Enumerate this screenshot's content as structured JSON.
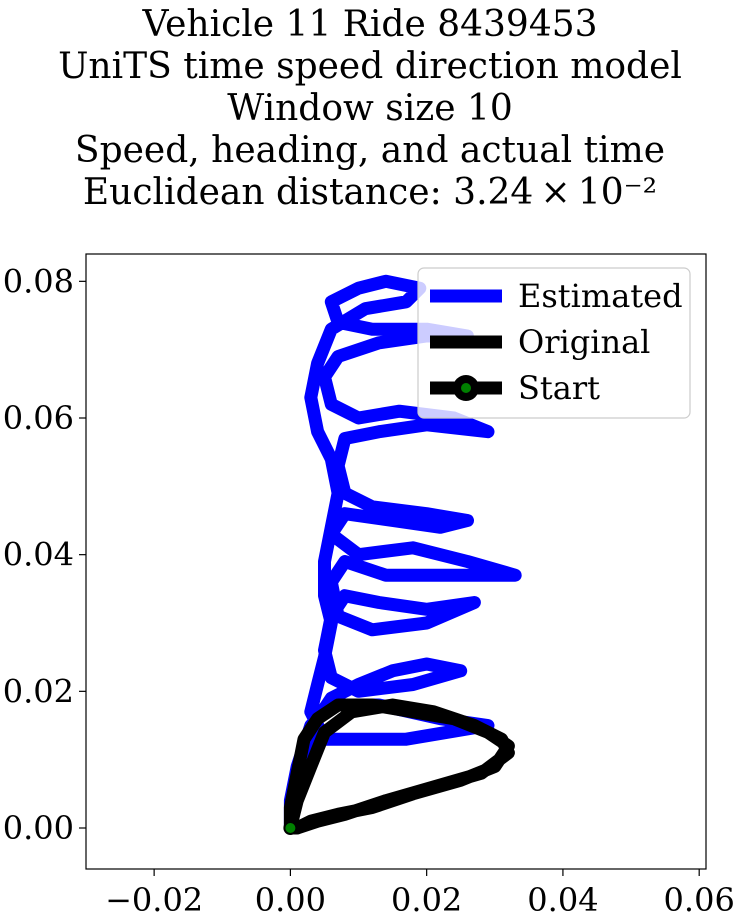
{
  "title_lines": [
    "Vehicle 11 Ride 8439453",
    "UniTS time speed direction model",
    "Window size 10",
    "Speed, heading, and actual time",
    "Euclidean distance: 3.24 × 10⁻²"
  ],
  "colors": {
    "estimated": "#0000ff",
    "original": "#000000",
    "start_marker": "#008000"
  },
  "chart_data": {
    "type": "line",
    "xlim": [
      -0.03,
      0.061
    ],
    "ylim": [
      -0.006,
      0.084
    ],
    "xticks": [
      -0.02,
      0.0,
      0.02,
      0.04,
      0.06
    ],
    "xtick_labels": [
      "−0.02",
      "0.00",
      "0.02",
      "0.04",
      "0.06"
    ],
    "yticks": [
      0.0,
      0.02,
      0.04,
      0.06,
      0.08
    ],
    "ytick_labels": [
      "0.00",
      "0.02",
      "0.04",
      "0.06",
      "0.08"
    ],
    "grid": false,
    "legend": {
      "placement": "top-right",
      "entries": [
        {
          "label": "Estimated",
          "style": "line",
          "color": "#0000ff"
        },
        {
          "label": "Original",
          "style": "line",
          "color": "#000000"
        },
        {
          "label": "Start",
          "style": "line-marker",
          "color": "#000000",
          "marker_color": "#008000"
        }
      ]
    },
    "series": [
      {
        "name": "Estimated",
        "color": "#0000ff",
        "points": [
          [
            0.0,
            0.0
          ],
          [
            0.001,
            0.006
          ],
          [
            0.002,
            0.011
          ],
          [
            0.004,
            0.016
          ],
          [
            0.006,
            0.019
          ],
          [
            0.01,
            0.021
          ],
          [
            0.015,
            0.023
          ],
          [
            0.02,
            0.024
          ],
          [
            0.025,
            0.023
          ],
          [
            0.018,
            0.021
          ],
          [
            0.01,
            0.02
          ],
          [
            0.006,
            0.022
          ],
          [
            0.005,
            0.026
          ],
          [
            0.006,
            0.031
          ],
          [
            0.008,
            0.034
          ],
          [
            0.013,
            0.033
          ],
          [
            0.02,
            0.032
          ],
          [
            0.027,
            0.033
          ],
          [
            0.02,
            0.03
          ],
          [
            0.012,
            0.029
          ],
          [
            0.007,
            0.031
          ],
          [
            0.006,
            0.036
          ],
          [
            0.008,
            0.039
          ],
          [
            0.014,
            0.037
          ],
          [
            0.022,
            0.037
          ],
          [
            0.033,
            0.037
          ],
          [
            0.026,
            0.039
          ],
          [
            0.018,
            0.041
          ],
          [
            0.01,
            0.04
          ],
          [
            0.006,
            0.043
          ],
          [
            0.008,
            0.046
          ],
          [
            0.015,
            0.045
          ],
          [
            0.022,
            0.044
          ],
          [
            0.026,
            0.045
          ],
          [
            0.02,
            0.046
          ],
          [
            0.012,
            0.047
          ],
          [
            0.008,
            0.049
          ],
          [
            0.007,
            0.053
          ],
          [
            0.008,
            0.057
          ],
          [
            0.013,
            0.058
          ],
          [
            0.02,
            0.059
          ],
          [
            0.029,
            0.058
          ],
          [
            0.024,
            0.06
          ],
          [
            0.016,
            0.061
          ],
          [
            0.01,
            0.06
          ],
          [
            0.006,
            0.062
          ],
          [
            0.005,
            0.066
          ],
          [
            0.007,
            0.069
          ],
          [
            0.013,
            0.071
          ],
          [
            0.02,
            0.072
          ],
          [
            0.026,
            0.072
          ],
          [
            0.02,
            0.073
          ],
          [
            0.012,
            0.073
          ],
          [
            0.007,
            0.074
          ],
          [
            0.006,
            0.077
          ],
          [
            0.01,
            0.079
          ],
          [
            0.014,
            0.08
          ],
          [
            0.019,
            0.079
          ],
          [
            0.017,
            0.077
          ],
          [
            0.011,
            0.076
          ],
          [
            0.006,
            0.073
          ],
          [
            0.004,
            0.068
          ],
          [
            0.003,
            0.063
          ],
          [
            0.004,
            0.058
          ],
          [
            0.006,
            0.054
          ],
          [
            0.007,
            0.049
          ],
          [
            0.006,
            0.044
          ],
          [
            0.005,
            0.039
          ],
          [
            0.005,
            0.034
          ],
          [
            0.006,
            0.03
          ],
          [
            0.005,
            0.025
          ],
          [
            0.004,
            0.021
          ],
          [
            0.003,
            0.017
          ],
          [
            0.005,
            0.013
          ],
          [
            0.01,
            0.013
          ],
          [
            0.017,
            0.013
          ],
          [
            0.023,
            0.014
          ],
          [
            0.029,
            0.015
          ],
          [
            0.022,
            0.016
          ],
          [
            0.013,
            0.018
          ],
          [
            0.006,
            0.018
          ],
          [
            0.003,
            0.015
          ],
          [
            0.001,
            0.009
          ],
          [
            0.0,
            0.004
          ],
          [
            0.0,
            0.0
          ]
        ]
      },
      {
        "name": "Original",
        "color": "#000000",
        "points": [
          [
            0.0,
            0.0
          ],
          [
            0.0,
            0.003
          ],
          [
            0.001,
            0.008
          ],
          [
            0.002,
            0.013
          ],
          [
            0.004,
            0.016
          ],
          [
            0.007,
            0.018
          ],
          [
            0.012,
            0.018
          ],
          [
            0.018,
            0.017
          ],
          [
            0.024,
            0.016
          ],
          [
            0.029,
            0.014
          ],
          [
            0.032,
            0.012
          ],
          [
            0.03,
            0.009
          ],
          [
            0.025,
            0.007
          ],
          [
            0.018,
            0.005
          ],
          [
            0.012,
            0.003
          ],
          [
            0.007,
            0.002
          ],
          [
            0.003,
            0.001
          ],
          [
            0.001,
            0.0
          ],
          [
            0.0,
            0.0
          ],
          [
            0.001,
            0.004
          ],
          [
            0.003,
            0.009
          ],
          [
            0.005,
            0.014
          ],
          [
            0.009,
            0.017
          ],
          [
            0.015,
            0.018
          ],
          [
            0.021,
            0.017
          ],
          [
            0.027,
            0.015
          ],
          [
            0.031,
            0.013
          ],
          [
            0.032,
            0.011
          ],
          [
            0.028,
            0.008
          ],
          [
            0.021,
            0.006
          ],
          [
            0.014,
            0.004
          ],
          [
            0.008,
            0.002
          ],
          [
            0.004,
            0.001
          ],
          [
            0.001,
            0.0
          ],
          [
            0.0,
            0.0
          ]
        ]
      }
    ],
    "start": [
      0.0,
      0.0
    ]
  }
}
